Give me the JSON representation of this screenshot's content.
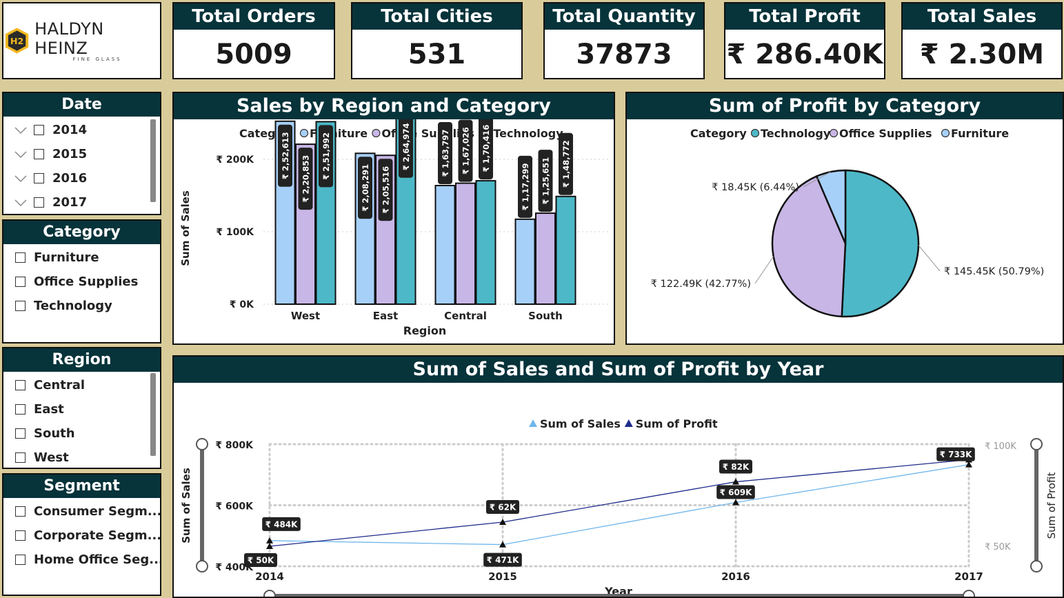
{
  "logo": {
    "badge": "H2",
    "name": "HALDYN HEINZ",
    "tagline": "FINE GLASS"
  },
  "kpis": [
    {
      "label": "Total Orders",
      "value": "5009"
    },
    {
      "label": "Total Cities",
      "value": "531"
    },
    {
      "label": "Total Quantity",
      "value": "37873"
    },
    {
      "label": "Total Profit",
      "value": "₹ 286.40K"
    },
    {
      "label": "Total Sales",
      "value": "₹ 2.30M"
    }
  ],
  "slicers": {
    "date": {
      "title": "Date",
      "items": [
        "2014",
        "2015",
        "2016",
        "2017"
      ]
    },
    "category": {
      "title": "Category",
      "items": [
        "Furniture",
        "Office Supplies",
        "Technology"
      ]
    },
    "region": {
      "title": "Region",
      "items": [
        "Central",
        "East",
        "South",
        "West"
      ]
    },
    "segment": {
      "title": "Segment",
      "items": [
        "Consumer Segm...",
        "Corporate Segm...",
        "Home Office Seg..."
      ]
    }
  },
  "colors": {
    "furniture": "#a7d0f9",
    "office_supplies": "#c8b6e6",
    "technology": "#4db8c8",
    "header": "#07333a",
    "sales_line": "#6fb6ec",
    "profit_line": "#1d2b8a"
  },
  "chart_data": [
    {
      "type": "bar",
      "title": "Sales by Region and Category",
      "legend_title": "Category",
      "xlabel": "Region",
      "ylabel": "Sum of Sales",
      "categories": [
        "West",
        "East",
        "Central",
        "South"
      ],
      "series": [
        {
          "name": "Furniture",
          "values": [
            252613,
            208291,
            163797,
            117299
          ],
          "labels": [
            "₹ 2,52,613",
            "₹ 2,08,291",
            "₹ 1,63,797",
            "₹ 1,17,299"
          ]
        },
        {
          "name": "Office Supplies",
          "values": [
            220853,
            205516,
            167026,
            125651
          ],
          "labels": [
            "₹ 2,20,853",
            "₹ 2,05,516",
            "₹ 1,67,026",
            "₹ 1,25,651"
          ]
        },
        {
          "name": "Technology",
          "values": [
            251992,
            264974,
            170416,
            148772
          ],
          "labels": [
            "₹ 2,51,992",
            "₹ 2,64,974",
            "₹ 1,70,416",
            "₹ 1,48,772"
          ]
        }
      ],
      "yticks": [
        0,
        100000,
        200000
      ],
      "ytick_labels": [
        "₹ 0K",
        "₹ 100K",
        "₹ 200K"
      ],
      "ylim": [
        0,
        300000
      ],
      "legend_position": "top"
    },
    {
      "type": "pie",
      "title": "Sum of Profit by Category",
      "legend_title": "Category",
      "slices": [
        {
          "name": "Technology",
          "value": 145.45,
          "label": "₹ 145.45K (50.79%)"
        },
        {
          "name": "Office Supplies",
          "value": 122.49,
          "label": "₹ 122.49K (42.77%)"
        },
        {
          "name": "Furniture",
          "value": 18.45,
          "label": "₹ 18.45K (6.44%)"
        }
      ],
      "legend_position": "top"
    },
    {
      "type": "line",
      "title": "Sum of Sales and Sum of Profit by Year",
      "xlabel": "Year",
      "ylabel": "Sum of Sales",
      "y2label": "Sum of Profit",
      "x": [
        "2014",
        "2015",
        "2016",
        "2017"
      ],
      "series": [
        {
          "name": "Sum of Sales",
          "axis": "left",
          "values": [
            484,
            471,
            609,
            733
          ],
          "labels": [
            "₹ 484K",
            "₹ 471K",
            "₹ 609K",
            "₹ 733K"
          ]
        },
        {
          "name": "Sum of Profit",
          "axis": "right",
          "values": [
            50,
            62,
            82,
            93
          ],
          "labels": [
            "₹ 50K",
            "₹ 62K",
            "₹ 82K",
            ""
          ]
        }
      ],
      "ylim": [
        400,
        800
      ],
      "yticks": [
        400,
        600,
        800
      ],
      "ytick_labels": [
        "₹ 400K",
        "₹ 600K",
        "₹ 800K"
      ],
      "y2lim": [
        40,
        100
      ],
      "y2ticks": [
        50,
        100
      ],
      "y2tick_labels": [
        "₹ 50K",
        "₹ 100K"
      ],
      "grid": true,
      "legend_position": "top"
    }
  ]
}
